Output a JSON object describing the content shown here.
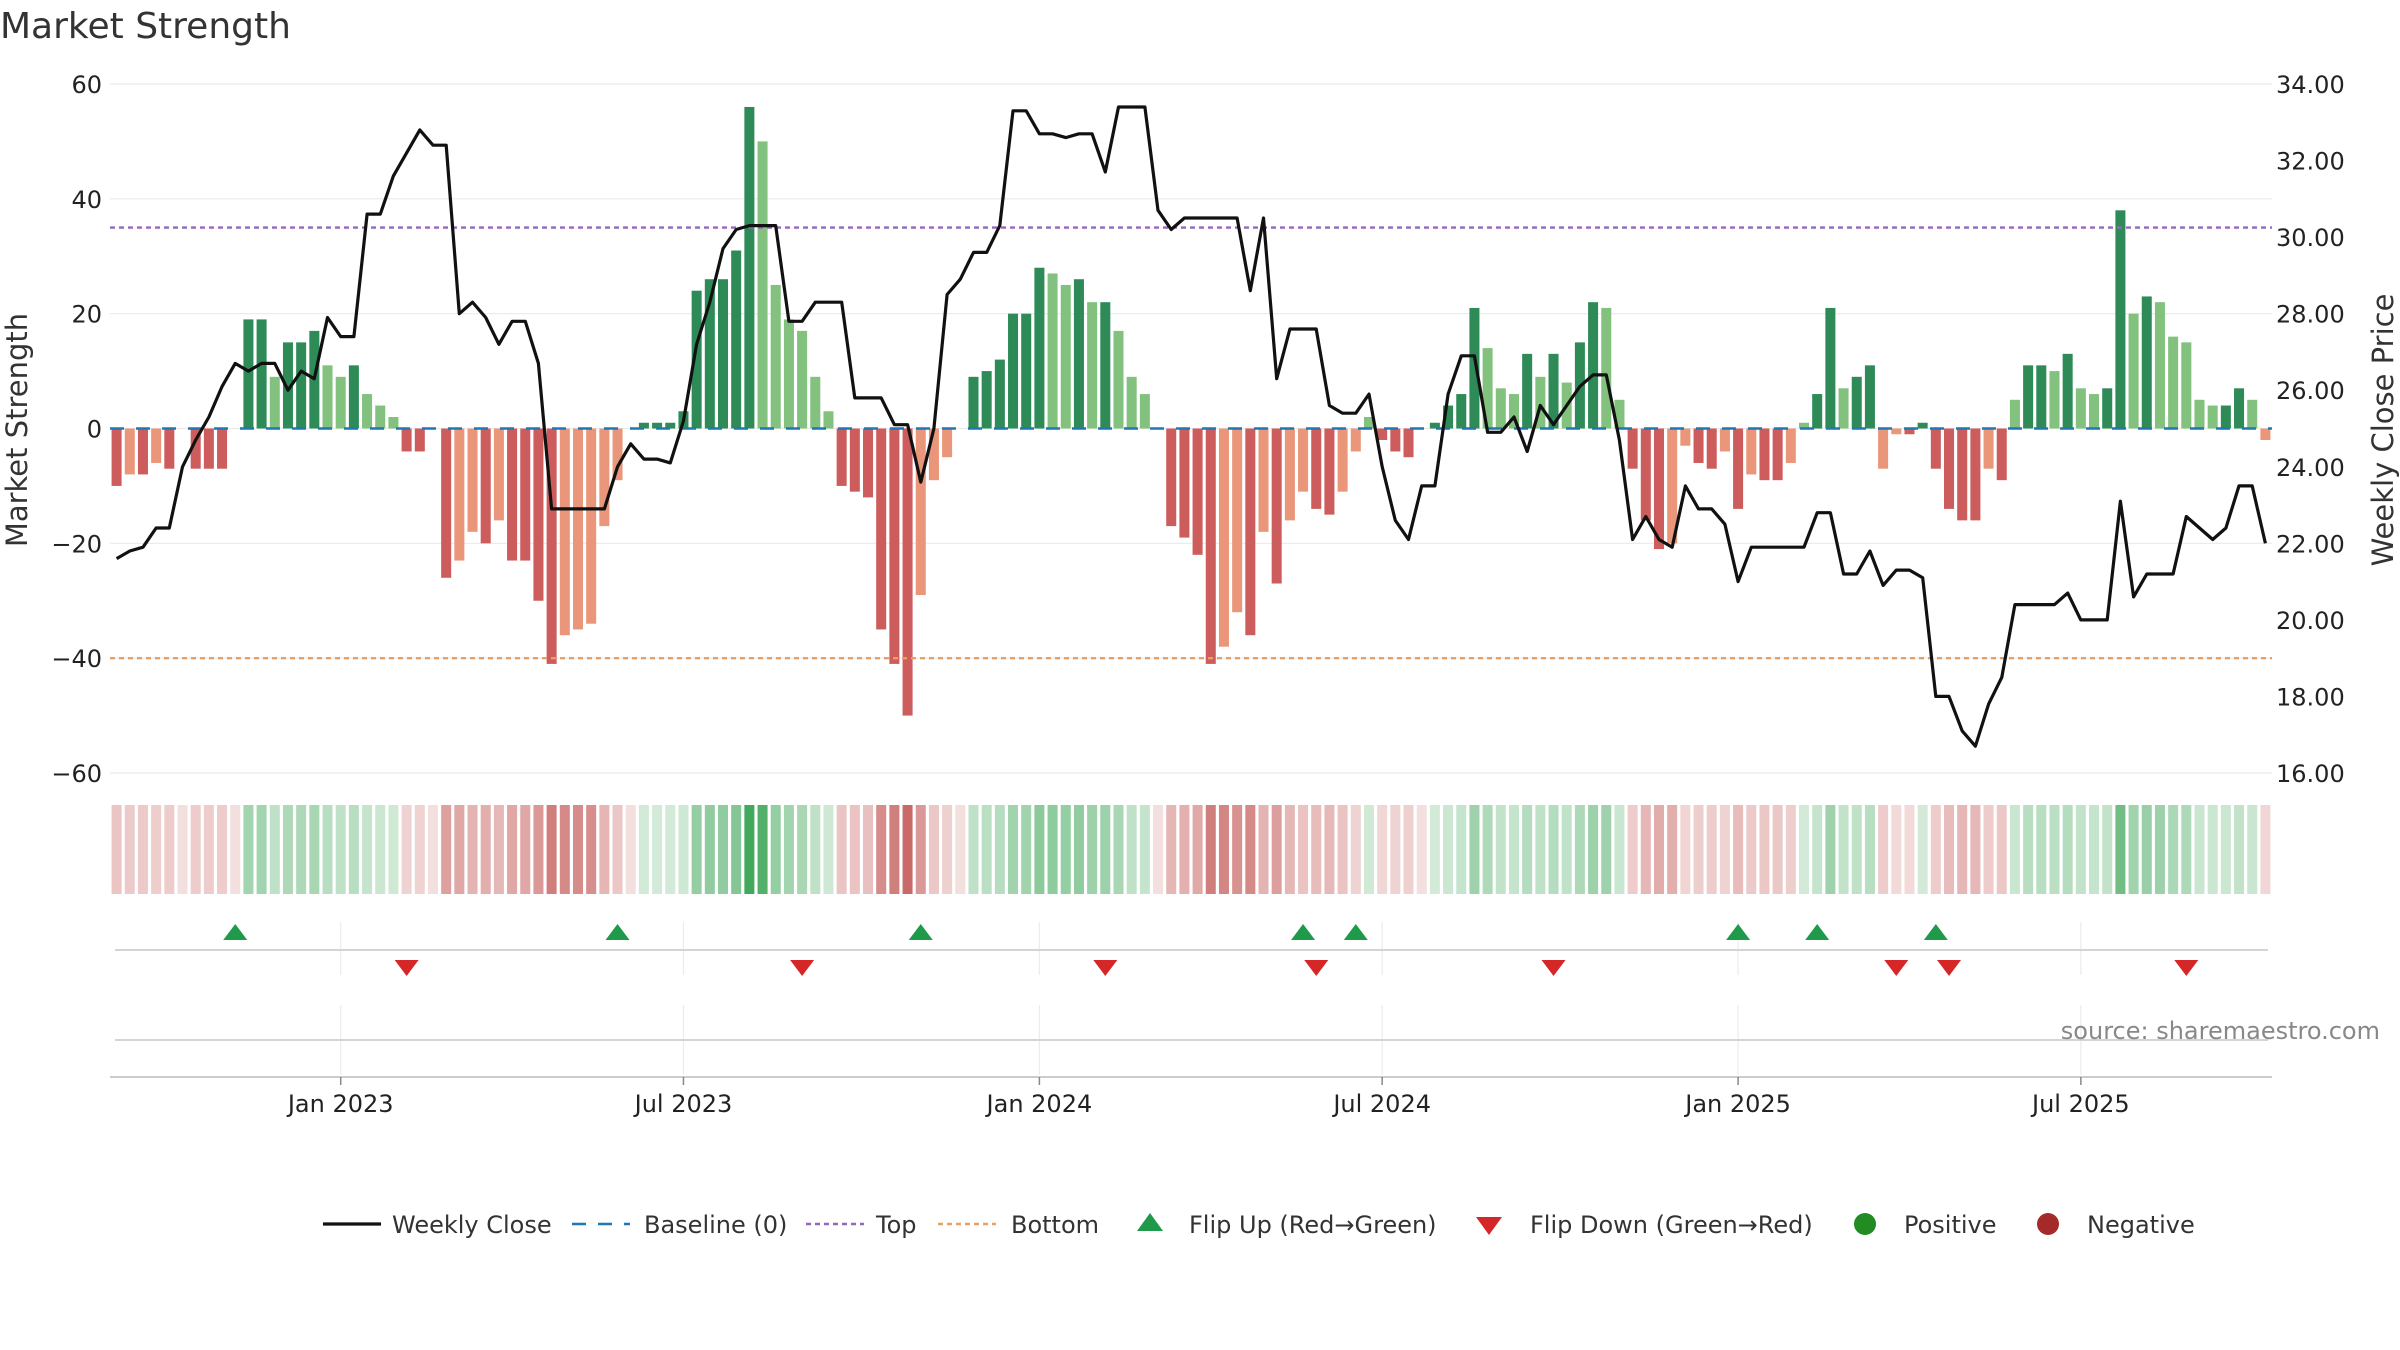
{
  "chart_data": {
    "type": "bar",
    "title": "Market Strength",
    "ylabel_left": "Market Strength",
    "ylabel_right": "Weekly Close Price",
    "ylim_left": [
      -60,
      60
    ],
    "yticks_left": [
      60,
      40,
      20,
      0,
      -20,
      -40,
      -60
    ],
    "ytick_labels_left": [
      "60",
      "40",
      "20",
      "0",
      "−20",
      "−40",
      "−60"
    ],
    "ylim_right": [
      16.0,
      34.0
    ],
    "yticks_right": [
      34.0,
      32.0,
      30.0,
      28.0,
      26.0,
      24.0,
      22.0,
      20.0,
      18.0,
      16.0
    ],
    "ytick_labels_right": [
      "34.00",
      "32.00",
      "30.00",
      "28.00",
      "26.00",
      "24.00",
      "22.00",
      "20.00",
      "18.00",
      "16.00"
    ],
    "xticks": [
      {
        "label": "Jan 2023",
        "week": 17
      },
      {
        "label": "Jul 2023",
        "week": 43
      },
      {
        "label": "Jan 2024",
        "week": 70
      },
      {
        "label": "Jul 2024",
        "week": 96
      },
      {
        "label": "Jan 2025",
        "week": 123
      },
      {
        "label": "Jul 2025",
        "week": 149
      }
    ],
    "top_level": 35,
    "bottom_level": -40,
    "baseline": 0,
    "strength": [
      -10,
      -8,
      -8,
      -6,
      -7,
      0,
      -7,
      -7,
      -7,
      0,
      19,
      19,
      9,
      15,
      15,
      17,
      11,
      9,
      11,
      6,
      4,
      2,
      -4,
      -4,
      0,
      -26,
      -23,
      -18,
      -20,
      -16,
      -23,
      -23,
      -30,
      -41,
      -36,
      -35,
      -34,
      -17,
      -9,
      0,
      1,
      1,
      1,
      3,
      24,
      26,
      26,
      31,
      56,
      50,
      25,
      19,
      17,
      9,
      3,
      -10,
      -11,
      -12,
      -35,
      -41,
      -50,
      -29,
      -9,
      -5,
      0,
      9,
      10,
      12,
      20,
      20,
      28,
      27,
      25,
      26,
      22,
      22,
      17,
      9,
      6,
      0,
      -17,
      -19,
      -22,
      -41,
      -38,
      -32,
      -36,
      -18,
      -27,
      -16,
      -11,
      -14,
      -15,
      -11,
      -4,
      2,
      -2,
      -4,
      -5,
      0,
      1,
      4,
      6,
      21,
      14,
      7,
      6,
      13,
      9,
      13,
      8,
      15,
      22,
      21,
      5,
      -7,
      -16,
      -21,
      -20,
      -3,
      -6,
      -7,
      -4,
      -14,
      -8,
      -9,
      -9,
      -6,
      1,
      6,
      21,
      7,
      9,
      11,
      -7,
      -1,
      -1,
      1,
      -7,
      -14,
      -16,
      -16,
      -7,
      -9,
      5,
      11,
      11,
      10,
      13,
      7,
      6,
      7,
      38,
      20,
      23,
      22,
      16,
      15,
      5,
      4,
      4,
      7,
      5,
      -2
    ],
    "strength_colors": {
      "strong_positive": "#2e8b57",
      "weak_positive": "#82c17e",
      "strong_negative": "#cd5c5c",
      "weak_negative": "#e9967a"
    },
    "weekly_close": [
      21.6,
      21.8,
      21.9,
      22.4,
      22.4,
      24.0,
      24.7,
      25.3,
      26.1,
      26.7,
      26.5,
      26.7,
      26.7,
      26.0,
      26.5,
      26.3,
      27.9,
      27.4,
      27.4,
      30.6,
      30.6,
      31.6,
      32.2,
      32.8,
      32.4,
      32.4,
      28.0,
      28.3,
      27.9,
      27.2,
      27.8,
      27.8,
      26.7,
      22.9,
      22.9,
      22.9,
      22.9,
      22.9,
      24.0,
      24.6,
      24.2,
      24.2,
      24.1,
      25.2,
      27.2,
      28.3,
      29.7,
      30.2,
      30.3,
      30.3,
      30.3,
      27.8,
      27.8,
      28.3,
      28.3,
      28.3,
      25.8,
      25.8,
      25.8,
      25.1,
      25.1,
      23.6,
      25.0,
      28.5,
      28.9,
      29.6,
      29.6,
      30.3,
      33.3,
      33.3,
      32.7,
      32.7,
      32.6,
      32.7,
      32.7,
      31.7,
      33.4,
      33.4,
      33.4,
      30.7,
      30.2,
      30.5,
      30.5,
      30.5,
      30.5,
      30.5,
      28.6,
      30.5,
      26.3,
      27.6,
      27.6,
      27.6,
      25.6,
      25.4,
      25.4,
      25.9,
      24.0,
      22.6,
      22.1,
      23.5,
      23.5,
      25.9,
      26.9,
      26.9,
      24.9,
      24.9,
      25.3,
      24.4,
      25.6,
      25.1,
      25.6,
      26.1,
      26.4,
      26.4,
      24.7,
      22.1,
      22.7,
      22.1,
      21.9,
      23.5,
      22.9,
      22.9,
      22.5,
      21.0,
      21.9,
      21.9,
      21.9,
      21.9,
      21.9,
      22.8,
      22.8,
      21.2,
      21.2,
      21.8,
      20.9,
      21.3,
      21.3,
      21.1,
      18.0,
      18.0,
      17.1,
      16.7,
      17.8,
      18.5,
      20.4,
      20.4,
      20.4,
      20.4,
      20.7,
      20.0,
      20.0,
      20.0,
      23.1,
      20.6,
      21.2,
      21.2,
      21.2,
      22.7,
      22.4,
      22.1,
      22.4,
      23.5,
      23.5,
      22.0
    ],
    "flip_up_weeks": [
      9,
      38,
      61,
      90,
      94,
      123,
      129,
      138
    ],
    "flip_down_weeks": [
      22,
      52,
      75,
      91,
      109,
      135,
      139,
      157
    ],
    "legend": [
      {
        "key": "weekly-close",
        "label": "Weekly Close",
        "color": "#111111"
      },
      {
        "key": "baseline",
        "label": "Baseline (0)",
        "color": "#1f77b4"
      },
      {
        "key": "top",
        "label": "Top",
        "color": "#9467bd"
      },
      {
        "key": "bottom",
        "label": "Bottom",
        "color": "#e8a060"
      },
      {
        "key": "flip-up",
        "label": "Flip Up (Red→Green)",
        "color": "#1e9a4a"
      },
      {
        "key": "flip-down",
        "label": "Flip Down (Green→Red)",
        "color": "#d62728"
      },
      {
        "key": "positive",
        "label": "Positive",
        "color": "#228b22"
      },
      {
        "key": "negative",
        "label": "Negative",
        "color": "#a52a2a"
      }
    ],
    "legend_position": "bottom-center",
    "source": "source: sharemaestro.com"
  }
}
